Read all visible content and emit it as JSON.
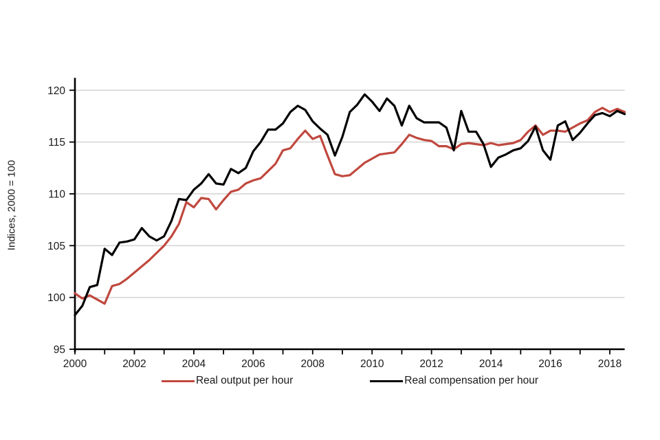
{
  "chart": {
    "y_axis_title": "Indices, 2000 = 100",
    "colors": {
      "output_line": "#c0483e",
      "compensation_line": "#000000",
      "gridline": "#d6d6d6",
      "axis": "#000000",
      "text": "#1a1a1a"
    }
  },
  "chart_data": {
    "type": "line",
    "title": "",
    "xlabel": "",
    "ylabel": "Indices, 2000 = 100",
    "x_start_year": 2000,
    "x_step_years": 0.25,
    "x_end_year": 2018.5,
    "x_tick_years": [
      2000,
      2001,
      2002,
      2003,
      2004,
      2005,
      2006,
      2007,
      2008,
      2009,
      2010,
      2011,
      2012,
      2013,
      2014,
      2015,
      2016,
      2017,
      2018
    ],
    "x_label_years": [
      2000,
      2002,
      2004,
      2006,
      2008,
      2010,
      2012,
      2014,
      2016,
      2018
    ],
    "ylim": [
      95,
      121.3
    ],
    "yticks": [
      95,
      100,
      105,
      110,
      115,
      120
    ],
    "grid": "horizontal-only",
    "legend_position": "bottom-center",
    "series": [
      {
        "name": "Real output per hour",
        "color": "#c0483e",
        "values": [
          100.4,
          99.9,
          100.2,
          99.8,
          99.4,
          101.1,
          101.3,
          101.8,
          102.4,
          103.0,
          103.6,
          104.3,
          105.0,
          105.9,
          107.1,
          109.2,
          108.7,
          109.6,
          109.5,
          108.5,
          109.4,
          110.2,
          110.4,
          111.0,
          111.3,
          111.5,
          112.2,
          112.9,
          114.2,
          114.4,
          115.3,
          116.1,
          115.3,
          115.6,
          113.7,
          111.9,
          111.7,
          111.8,
          112.4,
          113.0,
          113.4,
          113.8,
          113.9,
          114.0,
          114.8,
          115.7,
          115.4,
          115.2,
          115.1,
          114.6,
          114.6,
          114.3,
          114.8,
          114.9,
          114.8,
          114.7,
          114.9,
          114.7,
          114.8,
          114.9,
          115.2,
          116.0,
          116.6,
          115.7,
          116.1,
          116.1,
          116.0,
          116.4,
          116.8,
          117.1,
          117.9,
          118.3,
          117.9,
          118.2,
          117.9
        ]
      },
      {
        "name": "Real compensation per hour",
        "color": "#000000",
        "values": [
          98.3,
          99.2,
          101.0,
          101.2,
          104.7,
          104.1,
          105.3,
          105.4,
          105.6,
          106.7,
          105.9,
          105.5,
          105.9,
          107.4,
          109.5,
          109.4,
          110.4,
          111.0,
          111.9,
          111.0,
          110.9,
          112.4,
          112.0,
          112.5,
          114.1,
          115.0,
          116.2,
          116.2,
          116.8,
          117.9,
          118.5,
          118.1,
          117.0,
          116.3,
          115.7,
          113.7,
          115.5,
          117.9,
          118.6,
          119.6,
          118.9,
          118.0,
          119.2,
          118.5,
          116.6,
          118.5,
          117.3,
          116.9,
          116.9,
          116.9,
          116.4,
          114.2,
          118.0,
          116.0,
          116.0,
          114.8,
          112.6,
          113.5,
          113.8,
          114.2,
          114.4,
          115.1,
          116.5,
          114.2,
          113.3,
          116.6,
          117.0,
          115.2,
          115.9,
          116.8,
          117.6,
          117.8,
          117.5,
          118.0,
          117.7
        ]
      }
    ]
  }
}
